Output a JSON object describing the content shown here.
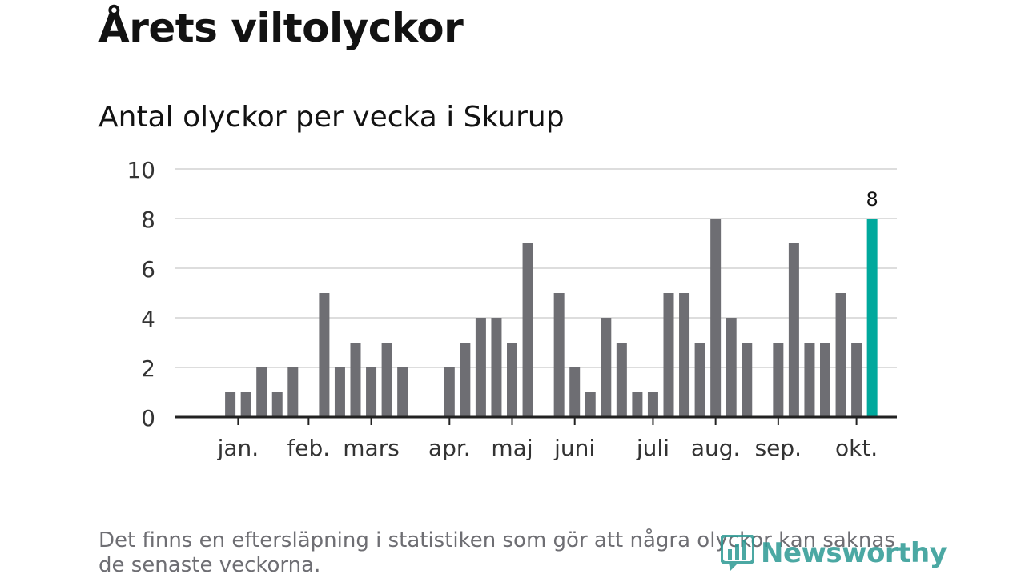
{
  "header": {
    "title": "Årets viltolyckor",
    "subtitle": "Antal olyckor per vecka i Skurup"
  },
  "footer": {
    "note": "Det finns en eftersläpning i statistiken som gör att några olyckor kan saknas de senaste veckorna.",
    "brand": "Newsworthy"
  },
  "colors": {
    "bar": "#6e6e73",
    "highlight": "#00a99d",
    "grid": "#dddddd",
    "axis": "#222222",
    "brand": "#2c9a94"
  },
  "chart_data": {
    "type": "bar",
    "title": "Antal olyckor per vecka i Skurup",
    "ylim": [
      0,
      10
    ],
    "yticks": [
      0,
      2,
      4,
      6,
      8,
      10
    ],
    "grid": true,
    "weeks": [
      1,
      2,
      3,
      4,
      5,
      6,
      7,
      8,
      9,
      10,
      11,
      12,
      13,
      14,
      15,
      16,
      17,
      18,
      19,
      20,
      21,
      22,
      23,
      24,
      25,
      26,
      27,
      28,
      29,
      30,
      31,
      32,
      33,
      34,
      35,
      36,
      37,
      38,
      39,
      40,
      41,
      42,
      43,
      44
    ],
    "values": [
      0,
      0,
      1,
      1,
      2,
      1,
      2,
      0,
      5,
      2,
      3,
      2,
      3,
      2,
      0,
      0,
      2,
      3,
      4,
      4,
      3,
      7,
      0,
      5,
      2,
      1,
      4,
      3,
      1,
      1,
      5,
      5,
      3,
      8,
      4,
      3,
      0,
      3,
      7,
      3,
      3,
      5,
      3,
      8
    ],
    "highlight_last": true,
    "highlight_label": "8",
    "month_labels": [
      {
        "label": "jan.",
        "week": 3.5
      },
      {
        "label": "feb.",
        "week": 8
      },
      {
        "label": "mars",
        "week": 12
      },
      {
        "label": "apr.",
        "week": 17
      },
      {
        "label": "maj",
        "week": 21
      },
      {
        "label": "juni",
        "week": 25
      },
      {
        "label": "juli",
        "week": 30
      },
      {
        "label": "aug.",
        "week": 34
      },
      {
        "label": "sep.",
        "week": 38
      },
      {
        "label": "okt.",
        "week": 43
      }
    ]
  }
}
